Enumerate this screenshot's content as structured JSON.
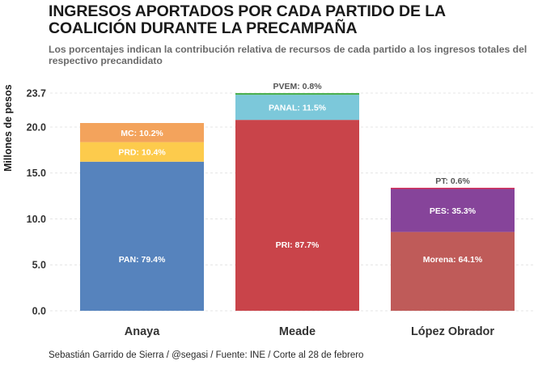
{
  "chart_data": {
    "type": "bar",
    "stacked": true,
    "title": "INGRESOS APORTADOS POR CADA PARTIDO DE LA COALICIÓN DURANTE LA PRECAMPAÑA",
    "subtitle": "Los porcentajes indican la contribución relativa de recursos de cada partido a los ingresos totales del respectivo precandidato",
    "caption": "Sebastián Garrido de Sierra / @segasi / Fuente: INE / Corte al 28 de febrero",
    "xlabel": "",
    "ylabel": "Millones de pesos",
    "ylim": [
      0,
      23.7
    ],
    "yticks": [
      0.0,
      5.0,
      10.0,
      15.0,
      20.0,
      23.7
    ],
    "ytick_labels": [
      "0.0",
      "5.0",
      "10.0",
      "15.0",
      "20.0",
      "23.7"
    ],
    "grid": true,
    "legend": "none",
    "categories": [
      "Anaya",
      "Meade",
      "López Obrador"
    ],
    "stacks": [
      {
        "category": "Anaya",
        "segments": [
          {
            "party": "PAN",
            "value": 16.23,
            "pct": "79.4%",
            "label": "PAN: 79.4%",
            "color": "#5683bd",
            "label_pos": "inside"
          },
          {
            "party": "PRD",
            "value": 2.13,
            "pct": "10.4%",
            "label": "PRD: 10.4%",
            "color": "#fdcb4c",
            "label_pos": "inside"
          },
          {
            "party": "MC",
            "value": 2.08,
            "pct": "10.2%",
            "label": "MC: 10.2%",
            "color": "#f3a35c",
            "label_pos": "inside"
          }
        ]
      },
      {
        "category": "Meade",
        "segments": [
          {
            "party": "PRI",
            "value": 20.78,
            "pct": "87.7%",
            "label": "PRI: 87.7%",
            "color": "#c9444a",
            "label_pos": "inside"
          },
          {
            "party": "PANAL",
            "value": 2.73,
            "pct": "11.5%",
            "label": "PANAL: 11.5%",
            "color": "#7cc8da",
            "label_pos": "inside"
          },
          {
            "party": "PVEM",
            "value": 0.19,
            "pct": "0.8%",
            "label": "PVEM: 0.8%",
            "color": "#4cb050",
            "label_pos": "above"
          }
        ]
      },
      {
        "category": "López Obrador",
        "segments": [
          {
            "party": "Morena",
            "value": 8.58,
            "pct": "64.1%",
            "label": "Morena: 64.1%",
            "color": "#bf5b59",
            "label_pos": "inside"
          },
          {
            "party": "PES",
            "value": 4.73,
            "pct": "35.3%",
            "label": "PES: 35.3%",
            "color": "#86449a",
            "label_pos": "inside"
          },
          {
            "party": "PT",
            "value": 0.08,
            "pct": "0.6%",
            "label": "PT: 0.6%",
            "color": "#d6305a",
            "label_pos": "above"
          }
        ]
      }
    ]
  }
}
